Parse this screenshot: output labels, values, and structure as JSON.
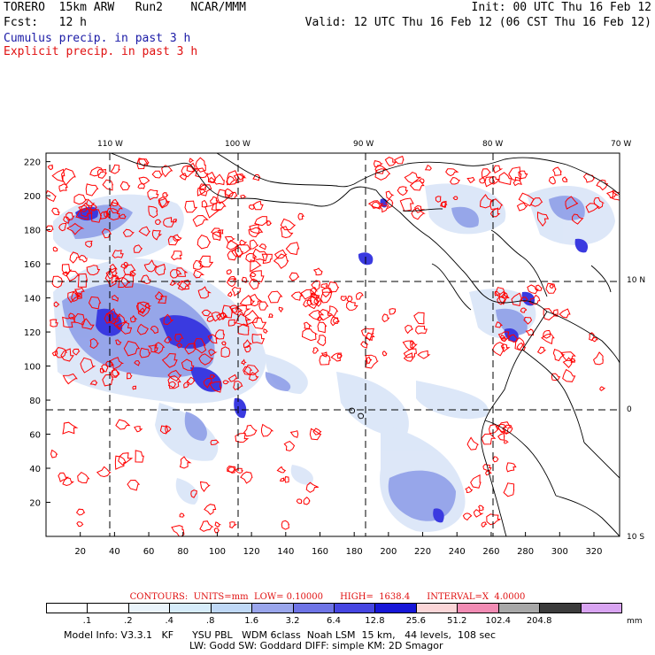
{
  "header": {
    "line1_left": "TORERO  15km ARW   Run2    NCAR/MMM",
    "line1_right": "Init: 00 UTC Thu 16 Feb 12",
    "line2_left": "Fcst:   12 h",
    "line2_right": "Valid: 12 UTC Thu 16 Feb 12 (06 CST Thu 16 Feb 12)",
    "cumulus_label": "Cumulus precip. in past 3 h",
    "explicit_label": "Explicit precip. in past 3 h"
  },
  "map": {
    "top_lon_labels": [
      "110 W",
      "100 W",
      "90 W",
      "80 W",
      "70 W"
    ],
    "right_lat_labels": [
      "10 N",
      "0",
      "10 S"
    ],
    "x_ticks": [
      "20",
      "40",
      "60",
      "80",
      "100",
      "120",
      "140",
      "160",
      "180",
      "200",
      "220",
      "240",
      "260",
      "280",
      "300",
      "320"
    ],
    "y_ticks": [
      "20",
      "40",
      "60",
      "80",
      "100",
      "120",
      "140",
      "160",
      "180",
      "200",
      "220"
    ],
    "colors": {
      "coast": "#000000",
      "cumulus_light": "#dbe6f8",
      "cumulus_mid": "#8f9fe8",
      "cumulus_dark": "#3a3ae0",
      "explicit_contour": "#ff0000",
      "grid": "#000000"
    }
  },
  "contour_info": "CONTOURS:  UNITS=mm  LOW= 0.10000      HIGH=  1638.4      INTERVAL=X  4.0000",
  "legend": {
    "unit": "mm",
    "labels": [
      ".1",
      ".2",
      ".4",
      ".8",
      "1.6",
      "3.2",
      "6.4",
      "12.8",
      "25.6",
      "51.2",
      "102.4",
      "204.8"
    ],
    "colors": [
      "#ffffff",
      "#ffffff",
      "#eaf4fb",
      "#d6ecfa",
      "#bfd8f6",
      "#9aa6ec",
      "#6e74e6",
      "#4646e2",
      "#1717d8",
      "#fbd6d8",
      "#f28cb4",
      "#a8a8a8",
      "#3c3c3c",
      "#d9a4f2"
    ]
  },
  "model_info": {
    "line1": "Model Info: V3.3.1   KF      YSU PBL   WDM 6class  Noah LSM  15 km,   44 levels,  108 sec",
    "line2": "LW: Godd SW: Goddard DIFF: simple KM: 2D Smagor"
  }
}
